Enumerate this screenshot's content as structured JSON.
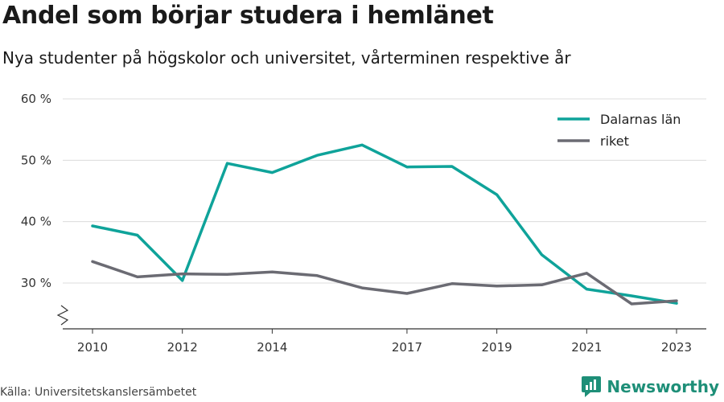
{
  "header": {
    "title": "Andel som börjar studera i hemlänet",
    "subtitle": "Nya studenter på högskolor och universitet, vårterminen respektive år"
  },
  "footer": {
    "source": "Källa: Universitetskanslersämbetet",
    "brand": "Newsworthy"
  },
  "chart_data": {
    "type": "line",
    "title": "Andel som börjar studera i hemlänet",
    "subtitle": "Nya studenter på högskolor och universitet, vårterminen respektive år",
    "xlabel": "",
    "ylabel": "",
    "x": [
      2010,
      2011,
      2012,
      2013,
      2014,
      2015,
      2016,
      2017,
      2018,
      2019,
      2020,
      2021,
      2022,
      2023
    ],
    "x_ticks": [
      "2010",
      "2012",
      "2014",
      "2017",
      "2019",
      "2021",
      "2023"
    ],
    "y_ticks": [
      "30 %",
      "40 %",
      "50 %",
      "60 %"
    ],
    "ylim": [
      24,
      61
    ],
    "axis_break": true,
    "grid": true,
    "legend_position": "top-right",
    "series": [
      {
        "name": "Dalarnas län",
        "color": "#0fa39a",
        "values": [
          39.3,
          37.8,
          30.4,
          49.5,
          48.0,
          50.8,
          52.5,
          48.9,
          49.0,
          44.4,
          34.6,
          29.0,
          27.9,
          26.7
        ]
      },
      {
        "name": "riket",
        "color": "#6b6b73",
        "values": [
          33.5,
          31.0,
          31.5,
          31.4,
          31.8,
          31.2,
          29.2,
          28.3,
          29.9,
          29.5,
          29.7,
          31.6,
          26.6,
          27.1
        ]
      }
    ]
  }
}
